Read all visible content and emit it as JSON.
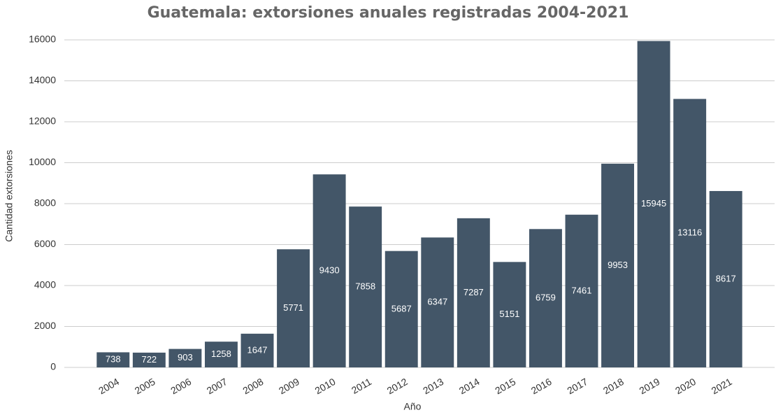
{
  "chart_data": {
    "type": "bar",
    "title": "Guatemala: extorsiones anuales registradas 2004-2021",
    "x_label": "Año",
    "y_label": "Cantidad extorsiones",
    "categories": [
      "2004",
      "2005",
      "2006",
      "2007",
      "2008",
      "2009",
      "2010",
      "2011",
      "2012",
      "2013",
      "2014",
      "2015",
      "2016",
      "2017",
      "2018",
      "2019",
      "2020",
      "2021"
    ],
    "values": [
      738,
      722,
      903,
      1258,
      1647,
      5771,
      9430,
      7858,
      5687,
      6347,
      7287,
      5151,
      6759,
      7461,
      9953,
      15945,
      13116,
      8617
    ],
    "color": "#435668",
    "ylim": [
      0,
      16000
    ],
    "yticks": [
      0,
      2000,
      4000,
      6000,
      8000,
      10000,
      12000,
      14000,
      16000
    ],
    "grid": true
  }
}
